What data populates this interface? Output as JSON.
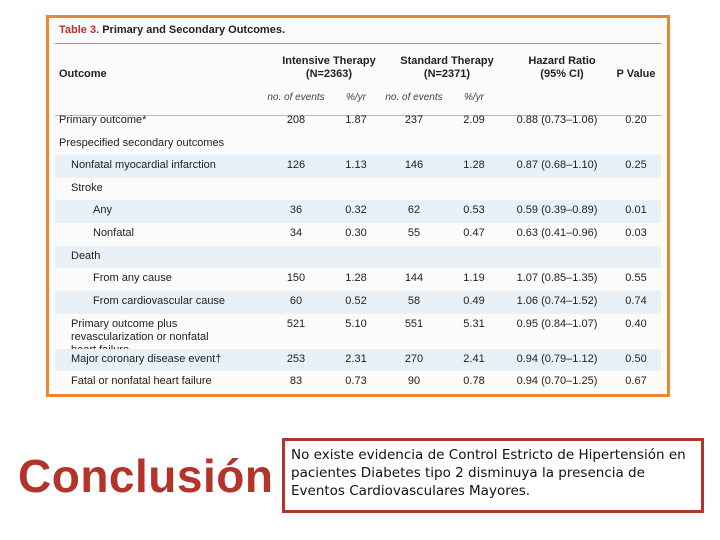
{
  "table": {
    "caption_number": "Table 3.",
    "caption_text": "Primary and Secondary Outcomes.",
    "headers": {
      "outcome": "Outcome",
      "intensive": "Intensive Therapy",
      "intensive_n": "(N=2363)",
      "standard": "Standard Therapy",
      "standard_n": "(N=2371)",
      "hazard": "Hazard Ratio",
      "hazard_ci": "(95% CI)",
      "pvalue": "P Value",
      "sub_events": "no. of events",
      "sub_rate": "%/yr"
    },
    "rows": [
      {
        "label": "Primary outcome*",
        "ie": "208",
        "ir": "1.87",
        "se": "237",
        "sr": "2.09",
        "hr": "0.88 (0.73–1.06)",
        "p": "0.20"
      },
      {
        "label": "Prespecified secondary outcomes",
        "ie": "",
        "ir": "",
        "se": "",
        "sr": "",
        "hr": "",
        "p": ""
      },
      {
        "label": "Nonfatal myocardial infarction",
        "ie": "126",
        "ir": "1.13",
        "se": "146",
        "sr": "1.28",
        "hr": "0.87 (0.68–1.10)",
        "p": "0.25"
      },
      {
        "label": "Stroke",
        "ie": "",
        "ir": "",
        "se": "",
        "sr": "",
        "hr": "",
        "p": ""
      },
      {
        "label": "Any",
        "ie": "36",
        "ir": "0.32",
        "se": "62",
        "sr": "0.53",
        "hr": "0.59 (0.39–0.89)",
        "p": "0.01"
      },
      {
        "label": "Nonfatal",
        "ie": "34",
        "ir": "0.30",
        "se": "55",
        "sr": "0.47",
        "hr": "0.63 (0.41–0.96)",
        "p": "0.03"
      },
      {
        "label": "Death",
        "ie": "",
        "ir": "",
        "se": "",
        "sr": "",
        "hr": "",
        "p": ""
      },
      {
        "label": "From any cause",
        "ie": "150",
        "ir": "1.28",
        "se": "144",
        "sr": "1.19",
        "hr": "1.07 (0.85–1.35)",
        "p": "0.55"
      },
      {
        "label": "From cardiovascular cause",
        "ie": "60",
        "ir": "0.52",
        "se": "58",
        "sr": "0.49",
        "hr": "1.06 (0.74–1.52)",
        "p": "0.74"
      },
      {
        "label": "Primary outcome plus revascularization or nonfatal heart failure",
        "ie": "521",
        "ir": "5.10",
        "se": "551",
        "sr": "5.31",
        "hr": "0.95 (0.84–1.07)",
        "p": "0.40"
      },
      {
        "label": "Major coronary disease event†",
        "ie": "253",
        "ir": "2.31",
        "se": "270",
        "sr": "2.41",
        "hr": "0.94 (0.79–1.12)",
        "p": "0.50"
      },
      {
        "label": "Fatal or nonfatal heart failure",
        "ie": "83",
        "ir": "0.73",
        "se": "90",
        "sr": "0.78",
        "hr": "0.94 (0.70–1.25)",
        "p": "0.67"
      }
    ]
  },
  "conclusion": {
    "title": "Conclusión",
    "text": "No existe evidencia de Control Estricto de Hipertensión en pacientes Diabetes tipo 2 disminuya la presencia de Eventos Cardiovasculares Mayores."
  },
  "colors": {
    "frame": "#e8892f",
    "accent": "#b3342b",
    "row_shade": "#e8f1f8"
  }
}
